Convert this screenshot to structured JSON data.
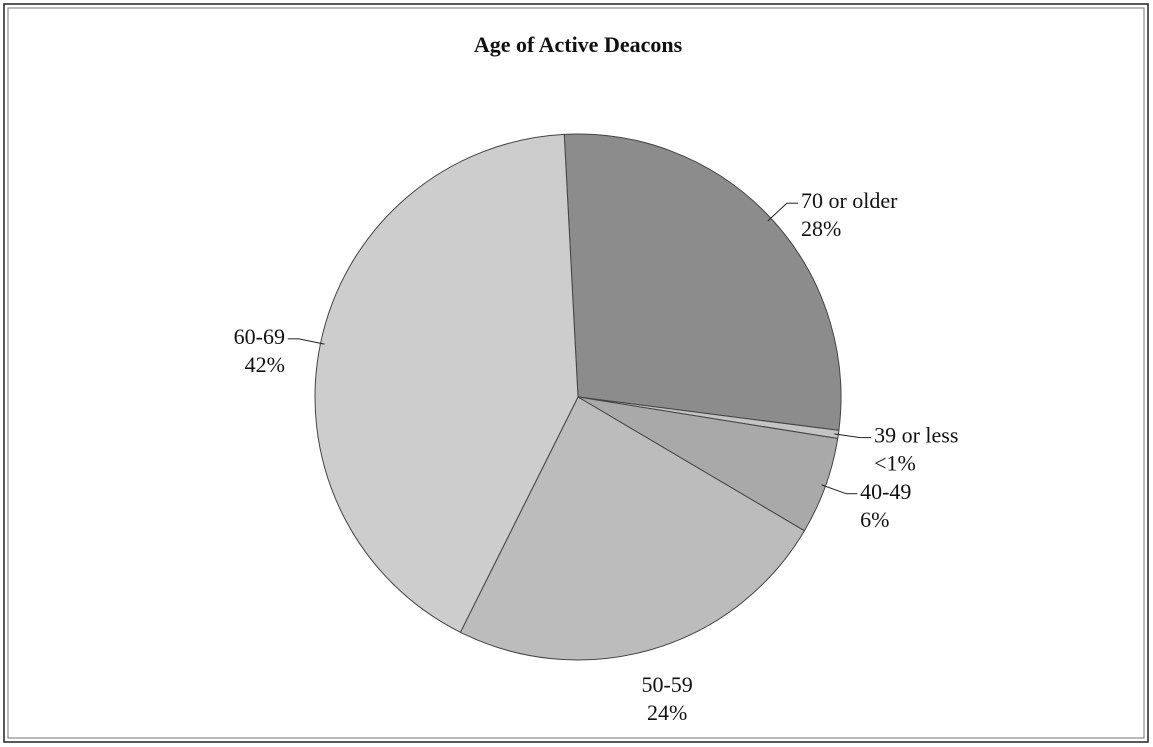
{
  "chart_data": {
    "type": "pie",
    "title": "Age of Active Deacons",
    "categories": [
      "70 or older",
      "39 or less",
      "40-49",
      "50-59",
      "60-69"
    ],
    "values": [
      28,
      0.5,
      6,
      24,
      42
    ],
    "value_labels": [
      "28%",
      "<1%",
      "6%",
      "24%",
      "42%"
    ],
    "colors": [
      "#8c8c8c",
      "#c4c4c4",
      "#a9a9a9",
      "#bcbcbc",
      "#cdcdcd"
    ]
  }
}
